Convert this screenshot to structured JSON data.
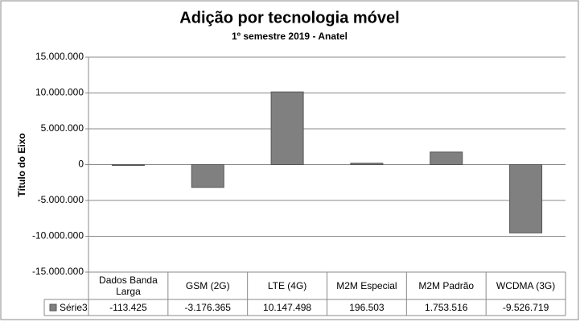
{
  "chart_data": {
    "type": "bar",
    "title": "Adição por tecnologia móvel",
    "subtitle": "1º semestre 2019 - Anatel",
    "y_label": "Título do Eixo",
    "categories": [
      "Dados Banda Larga",
      "GSM (2G)",
      "LTE (4G)",
      "M2M Especial",
      "M2M Padrão",
      "WCDMA (3G)"
    ],
    "series": [
      {
        "name": "Série3",
        "color": "#808080",
        "values": [
          -113425,
          -3176365,
          10147498,
          196503,
          1753516,
          -9526719
        ],
        "value_labels": [
          "-113.425",
          "-3.176.365",
          "10.147.498",
          "196.503",
          "1.753.516",
          "-9.526.719"
        ]
      }
    ],
    "ylim": [
      -15000000,
      15000000
    ],
    "yticks": [
      {
        "value": -15000000,
        "label": "-15.000.000"
      },
      {
        "value": -10000000,
        "label": "-10.000.000"
      },
      {
        "value": -5000000,
        "label": "-5.000.000"
      },
      0,
      {
        "value": 5000000,
        "label": "5.000.000"
      },
      {
        "value": 10000000,
        "label": "10.000.000"
      },
      {
        "value": 15000000,
        "label": "15.000.000"
      }
    ],
    "grid": true,
    "data_table": true
  }
}
